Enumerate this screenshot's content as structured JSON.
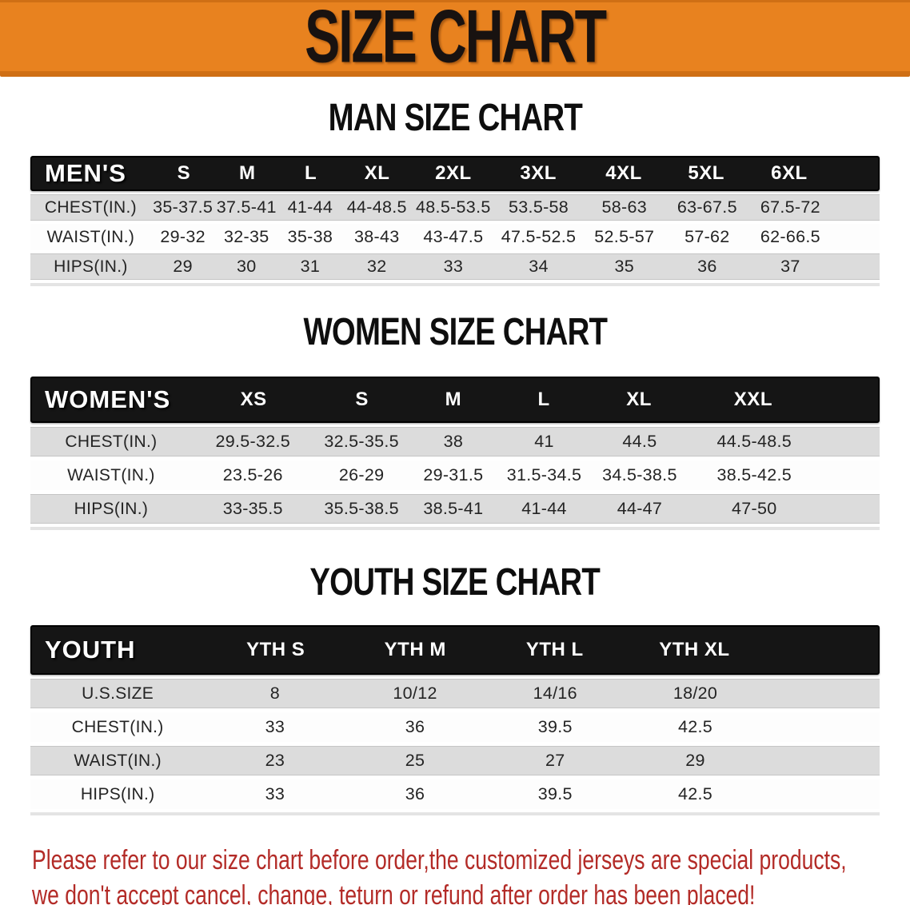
{
  "banner": {
    "title": "SIZE CHART"
  },
  "colors": {
    "banner_bg": "#e8821f",
    "banner_edge": "#cf6f15",
    "bar_bg": "#151515",
    "row_gray": "#dcdcdc",
    "notice_red": "#b32b27"
  },
  "sections": [
    {
      "heading": "MAN SIZE CHART",
      "label": "MEN'S",
      "columns": [
        "S",
        "M",
        "L",
        "XL",
        "2XL",
        "3XL",
        "4XL",
        "5XL",
        "6XL"
      ],
      "rows": [
        {
          "label": "CHEST(IN.)",
          "values": [
            "35-37.5",
            "37.5-41",
            "41-44",
            "44-48.5",
            "48.5-53.5",
            "53.5-58",
            "58-63",
            "63-67.5",
            "67.5-72"
          ]
        },
        {
          "label": "WAIST(IN.)",
          "values": [
            "29-32",
            "32-35",
            "35-38",
            "38-43",
            "43-47.5",
            "47.5-52.5",
            "52.5-57",
            "57-62",
            "62-66.5"
          ]
        },
        {
          "label": "HIPS(IN.)",
          "values": [
            "29",
            "30",
            "31",
            "32",
            "33",
            "34",
            "35",
            "36",
            "37"
          ]
        }
      ]
    },
    {
      "heading": "WOMEN SIZE CHART",
      "label": "WOMEN'S",
      "columns": [
        "XS",
        "S",
        "M",
        "L",
        "XL",
        "XXL"
      ],
      "rows": [
        {
          "label": "CHEST(IN.)",
          "values": [
            "29.5-32.5",
            "32.5-35.5",
            "38",
            "41",
            "44.5",
            "44.5-48.5"
          ]
        },
        {
          "label": "WAIST(IN.)",
          "values": [
            "23.5-26",
            "26-29",
            "29-31.5",
            "31.5-34.5",
            "34.5-38.5",
            "38.5-42.5"
          ]
        },
        {
          "label": "HIPS(IN.)",
          "values": [
            "33-35.5",
            "35.5-38.5",
            "38.5-41",
            "41-44",
            "44-47",
            "47-50"
          ]
        }
      ]
    },
    {
      "heading": "YOUTH SIZE CHART",
      "label": "YOUTH",
      "columns": [
        "YTH S",
        "YTH M",
        "YTH L",
        "YTH XL"
      ],
      "rows": [
        {
          "label": "U.S.SIZE",
          "values": [
            "8",
            "10/12",
            "14/16",
            "18/20"
          ]
        },
        {
          "label": "CHEST(IN.)",
          "values": [
            "33",
            "36",
            "39.5",
            "42.5"
          ]
        },
        {
          "label": "WAIST(IN.)",
          "values": [
            "23",
            "25",
            "27",
            "29"
          ]
        },
        {
          "label": "HIPS(IN.)",
          "values": [
            "33",
            "36",
            "39.5",
            "42.5"
          ]
        }
      ]
    }
  ],
  "footer": {
    "line1": "Please refer to our size chart before order,the customized jerseys are special products,",
    "line2": "we don't accept cancel, change, teturn or refund after order has been placed!"
  }
}
